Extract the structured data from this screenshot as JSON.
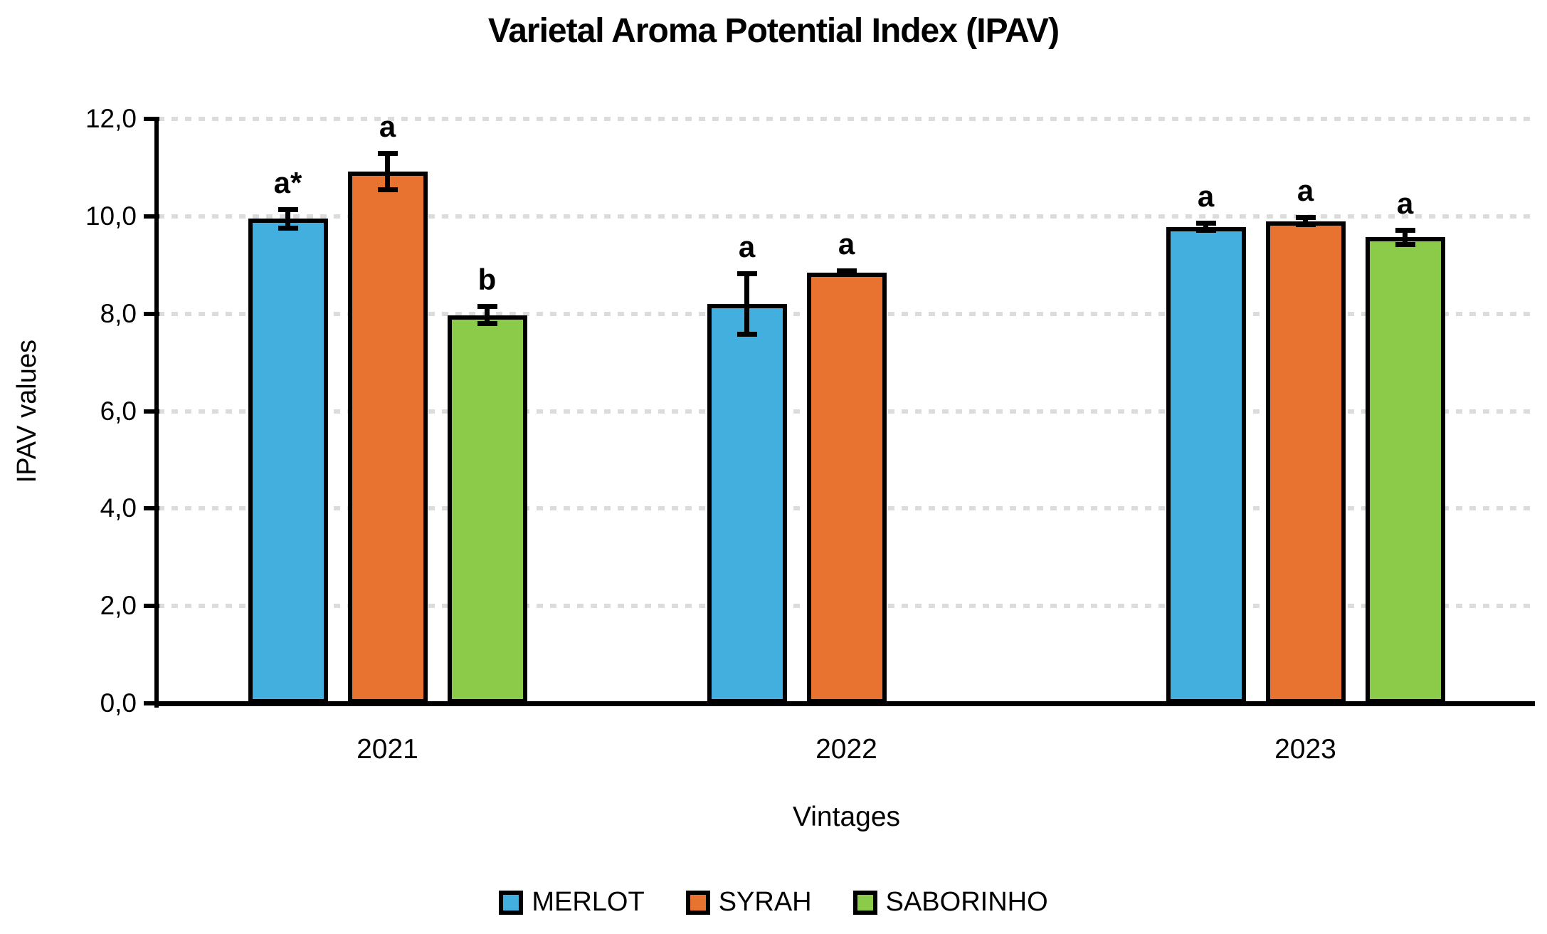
{
  "chart_data": {
    "type": "bar",
    "title": "Varietal Aroma Potential Index (IPAV)",
    "xlabel": "Vintages",
    "ylabel": "IPAV values",
    "categories": [
      "2021",
      "2022",
      "2023"
    ],
    "series": [
      {
        "name": "MERLOT",
        "color": "#42AFDF",
        "values": [
          9.95,
          8.2,
          9.78
        ],
        "errors": [
          0.2,
          0.63,
          0.08
        ],
        "letters": [
          "a*",
          "a",
          "a"
        ]
      },
      {
        "name": "SYRAH",
        "color": "#E87330",
        "values": [
          10.92,
          8.85,
          9.9
        ],
        "errors": [
          0.38,
          0.04,
          0.08
        ],
        "letters": [
          "a",
          "a",
          "a"
        ]
      },
      {
        "name": "SABORINHO",
        "color": "#8CCB4A",
        "values": [
          7.97,
          null,
          9.57
        ],
        "errors": [
          0.18,
          null,
          0.15
        ],
        "letters": [
          "b",
          null,
          "a"
        ]
      }
    ],
    "ylim": [
      0,
      12
    ],
    "ytick_step": 2,
    "ytick_labels": [
      "0,0",
      "2,0",
      "4,0",
      "6,0",
      "8,0",
      "10,0",
      "12,0"
    ],
    "grid": "horizontal-dashed",
    "legend_position": "bottom",
    "axis_color": "#000000",
    "gridline_color": "#DCDCDC"
  }
}
